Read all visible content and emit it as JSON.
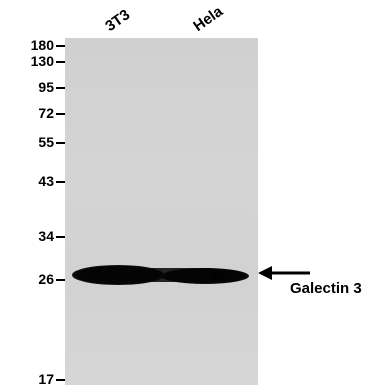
{
  "lanes": [
    "3T3",
    "Hela"
  ],
  "markers": [
    "180",
    "130",
    "95",
    "72",
    "55",
    "43",
    "34",
    "26",
    "17"
  ],
  "band": {
    "label": "Galectin 3",
    "arrow_icon": "left-arrow-icon"
  },
  "colors": {
    "membrane": "#d2d2d2",
    "band": "#0a0a0a",
    "text": "#000000"
  }
}
